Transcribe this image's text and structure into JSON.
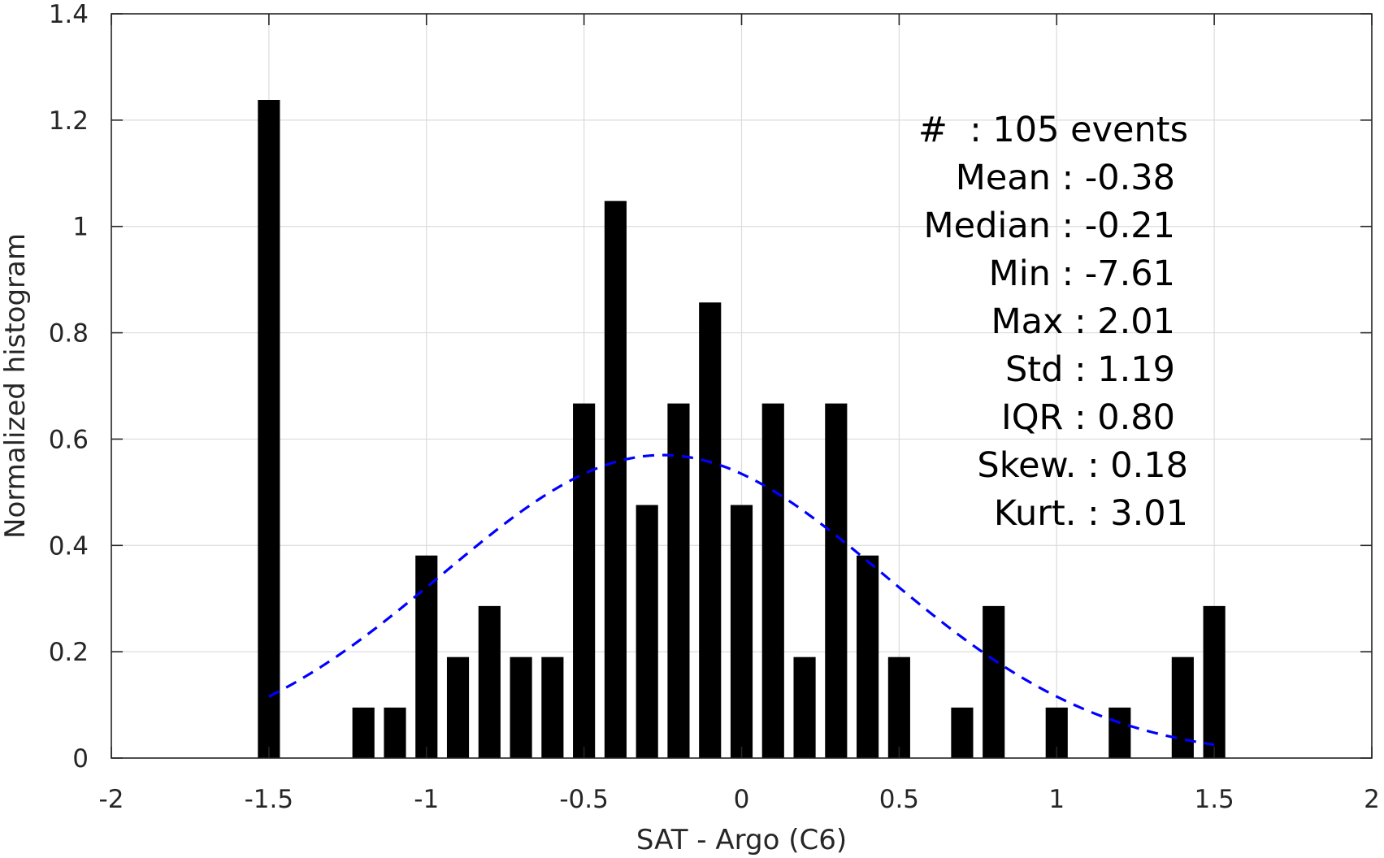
{
  "chart_data": {
    "type": "bar",
    "xlabel": "SAT - Argo (C6)",
    "ylabel": "Normalized histogram",
    "xlim": [
      -2,
      2
    ],
    "ylim": [
      0,
      1.4
    ],
    "grid": true,
    "x_ticks": [
      -2,
      -1.5,
      -1,
      -0.5,
      0,
      0.5,
      1,
      1.5,
      2
    ],
    "x_tick_labels": [
      "-2",
      "-1.5",
      "-1",
      "-0.5",
      "0",
      "0.5",
      "1",
      "1.5",
      "2"
    ],
    "y_ticks": [
      0,
      0.2,
      0.4,
      0.6,
      0.8,
      1,
      1.2,
      1.4
    ],
    "y_tick_labels": [
      "0",
      "0.2",
      "0.4",
      "0.6",
      "0.8",
      "1",
      "1.2",
      "1.4"
    ],
    "bar_color": "#000000",
    "bars": [
      {
        "x": -1.5,
        "value": 1.238
      },
      {
        "x": -1.2,
        "value": 0.095
      },
      {
        "x": -1.1,
        "value": 0.095
      },
      {
        "x": -1.0,
        "value": 0.381
      },
      {
        "x": -0.9,
        "value": 0.19
      },
      {
        "x": -0.8,
        "value": 0.286
      },
      {
        "x": -0.7,
        "value": 0.19
      },
      {
        "x": -0.6,
        "value": 0.19
      },
      {
        "x": -0.5,
        "value": 0.667
      },
      {
        "x": -0.4,
        "value": 1.048
      },
      {
        "x": -0.3,
        "value": 0.476
      },
      {
        "x": -0.2,
        "value": 0.667
      },
      {
        "x": -0.1,
        "value": 0.857
      },
      {
        "x": 0.0,
        "value": 0.476
      },
      {
        "x": 0.1,
        "value": 0.667
      },
      {
        "x": 0.2,
        "value": 0.19
      },
      {
        "x": 0.3,
        "value": 0.667
      },
      {
        "x": 0.4,
        "value": 0.381
      },
      {
        "x": 0.5,
        "value": 0.19
      },
      {
        "x": 0.7,
        "value": 0.095
      },
      {
        "x": 0.8,
        "value": 0.286
      },
      {
        "x": 1.0,
        "value": 0.095
      },
      {
        "x": 1.2,
        "value": 0.095
      },
      {
        "x": 1.4,
        "value": 0.19
      },
      {
        "x": 1.5,
        "value": 0.286
      }
    ],
    "bar_width": 0.07,
    "fit_curve": {
      "type": "normal",
      "style": "dashed",
      "color": "#0000ff",
      "mean": -0.25,
      "std": 0.7,
      "x_range": [
        -1.5,
        1.5
      ]
    },
    "annotations": [
      "#  : 105 events",
      "Mean : -0.38",
      "Median : -0.21",
      "Min : -7.61",
      "Max : 2.01",
      "Std : 1.19",
      "IQR : 0.80",
      "Skew. : 0.18",
      "Kurt. : 3.01"
    ]
  }
}
